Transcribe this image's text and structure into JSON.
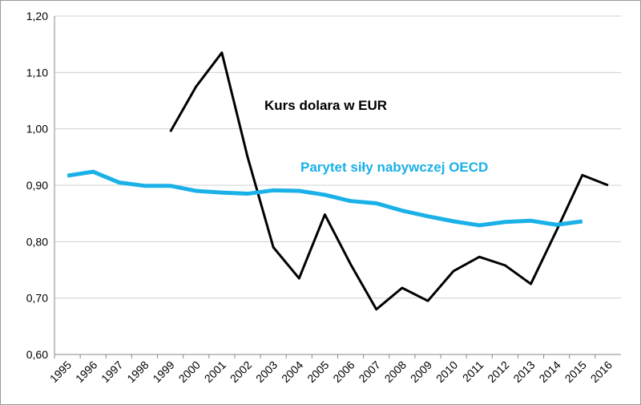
{
  "chart_data": {
    "type": "line",
    "categories": [
      "1995",
      "1996",
      "1997",
      "1998",
      "1999",
      "2000",
      "2001",
      "2002",
      "2003",
      "2004",
      "2005",
      "2006",
      "2007",
      "2008",
      "2009",
      "2010",
      "2011",
      "2012",
      "2013",
      "2014",
      "2015",
      "2016"
    ],
    "series": [
      {
        "name": "Kurs dolara w EUR",
        "color": "#000000",
        "values": [
          null,
          null,
          null,
          null,
          0.995,
          1.075,
          1.135,
          0.95,
          0.79,
          0.735,
          0.848,
          0.76,
          0.68,
          0.718,
          0.695,
          0.748,
          0.773,
          0.758,
          0.725,
          0.82,
          0.918,
          0.9
        ]
      },
      {
        "name": "Parytet siły nabywczej OECD",
        "color": "#1ab0e8",
        "values": [
          0.917,
          0.924,
          0.905,
          0.899,
          0.899,
          0.89,
          0.887,
          0.885,
          0.891,
          0.89,
          0.883,
          0.872,
          0.868,
          0.855,
          0.845,
          0.836,
          0.829,
          0.835,
          0.837,
          0.83,
          0.836,
          null
        ]
      }
    ],
    "ylim": [
      0.6,
      1.2
    ],
    "yticks": [
      {
        "value": 0.6,
        "label": "0,60"
      },
      {
        "value": 0.7,
        "label": "0,70"
      },
      {
        "value": 0.8,
        "label": "0,80"
      },
      {
        "value": 0.9,
        "label": "0,90"
      },
      {
        "value": 1.0,
        "label": "1,00"
      },
      {
        "value": 1.1,
        "label": "1,10"
      },
      {
        "value": 1.2,
        "label": "1,20"
      }
    ],
    "grid": true
  }
}
